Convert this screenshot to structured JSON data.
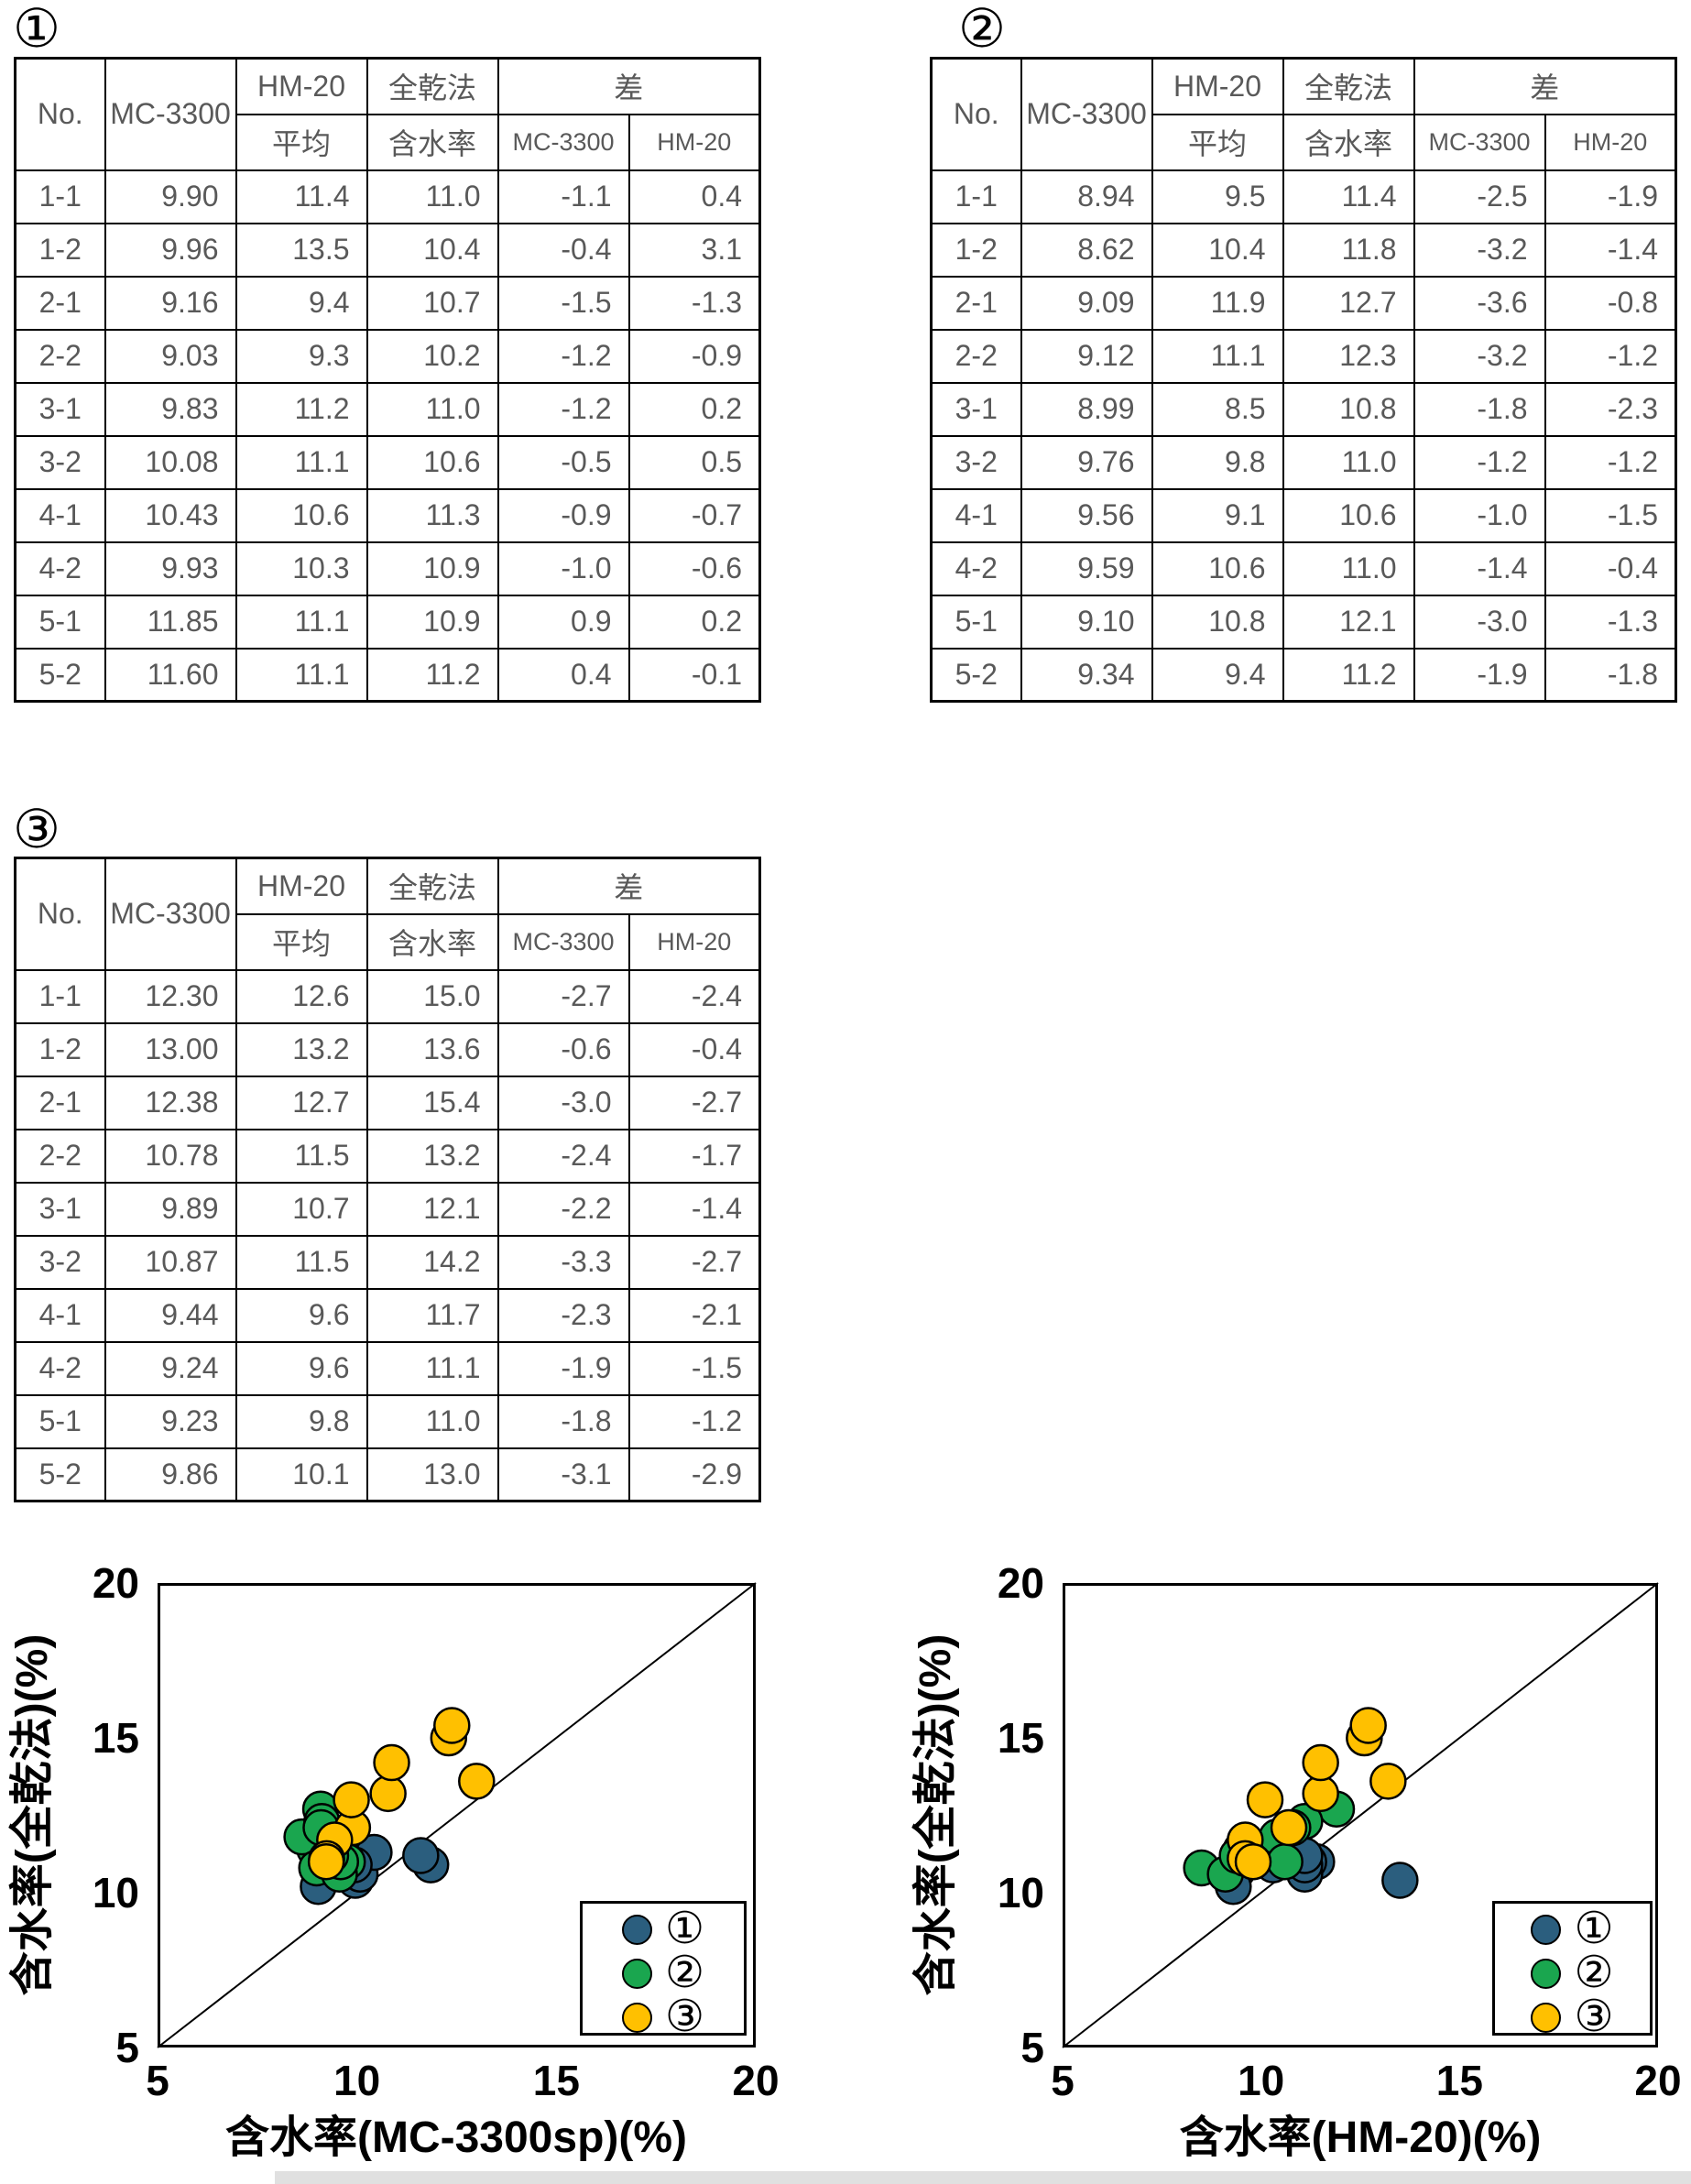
{
  "tables": [
    {
      "label": "①",
      "header": {
        "no": "No.",
        "device_a": "MC-3300",
        "device_b": "HM-20",
        "avg": "平均",
        "oven": "全乾法",
        "moisture": "含水率",
        "diff": "差",
        "diff_a": "MC-3300",
        "diff_b": "HM-20"
      },
      "rows": [
        [
          "1-1",
          "9.90",
          "11.4",
          "11.0",
          "-1.1",
          "0.4"
        ],
        [
          "1-2",
          "9.96",
          "13.5",
          "10.4",
          "-0.4",
          "3.1"
        ],
        [
          "2-1",
          "9.16",
          "9.4",
          "10.7",
          "-1.5",
          "-1.3"
        ],
        [
          "2-2",
          "9.03",
          "9.3",
          "10.2",
          "-1.2",
          "-0.9"
        ],
        [
          "3-1",
          "9.83",
          "11.2",
          "11.0",
          "-1.2",
          "0.2"
        ],
        [
          "3-2",
          "10.08",
          "11.1",
          "10.6",
          "-0.5",
          "0.5"
        ],
        [
          "4-1",
          "10.43",
          "10.6",
          "11.3",
          "-0.9",
          "-0.7"
        ],
        [
          "4-2",
          "9.93",
          "10.3",
          "10.9",
          "-1.0",
          "-0.6"
        ],
        [
          "5-1",
          "11.85",
          "11.1",
          "10.9",
          "0.9",
          "0.2"
        ],
        [
          "5-2",
          "11.60",
          "11.1",
          "11.2",
          "0.4",
          "-0.1"
        ]
      ]
    },
    {
      "label": "②",
      "header": {
        "no": "No.",
        "device_a": "MC-3300",
        "device_b": "HM-20",
        "avg": "平均",
        "oven": "全乾法",
        "moisture": "含水率",
        "diff": "差",
        "diff_a": "MC-3300",
        "diff_b": "HM-20"
      },
      "rows": [
        [
          "1-1",
          "8.94",
          "9.5",
          "11.4",
          "-2.5",
          "-1.9"
        ],
        [
          "1-2",
          "8.62",
          "10.4",
          "11.8",
          "-3.2",
          "-1.4"
        ],
        [
          "2-1",
          "9.09",
          "11.9",
          "12.7",
          "-3.6",
          "-0.8"
        ],
        [
          "2-2",
          "9.12",
          "11.1",
          "12.3",
          "-3.2",
          "-1.2"
        ],
        [
          "3-1",
          "8.99",
          "8.5",
          "10.8",
          "-1.8",
          "-2.3"
        ],
        [
          "3-2",
          "9.76",
          "9.8",
          "11.0",
          "-1.2",
          "-1.2"
        ],
        [
          "4-1",
          "9.56",
          "9.1",
          "10.6",
          "-1.0",
          "-1.5"
        ],
        [
          "4-2",
          "9.59",
          "10.6",
          "11.0",
          "-1.4",
          "-0.4"
        ],
        [
          "5-1",
          "9.10",
          "10.8",
          "12.1",
          "-3.0",
          "-1.3"
        ],
        [
          "5-2",
          "9.34",
          "9.4",
          "11.2",
          "-1.9",
          "-1.8"
        ]
      ]
    },
    {
      "label": "③",
      "header": {
        "no": "No.",
        "device_a": "MC-3300",
        "device_b": "HM-20",
        "avg": "平均",
        "oven": "全乾法",
        "moisture": "含水率",
        "diff": "差",
        "diff_a": "MC-3300",
        "diff_b": "HM-20"
      },
      "rows": [
        [
          "1-1",
          "12.30",
          "12.6",
          "15.0",
          "-2.7",
          "-2.4"
        ],
        [
          "1-2",
          "13.00",
          "13.2",
          "13.6",
          "-0.6",
          "-0.4"
        ],
        [
          "2-1",
          "12.38",
          "12.7",
          "15.4",
          "-3.0",
          "-2.7"
        ],
        [
          "2-2",
          "10.78",
          "11.5",
          "13.2",
          "-2.4",
          "-1.7"
        ],
        [
          "3-1",
          "9.89",
          "10.7",
          "12.1",
          "-2.2",
          "-1.4"
        ],
        [
          "3-2",
          "10.87",
          "11.5",
          "14.2",
          "-3.3",
          "-2.7"
        ],
        [
          "4-1",
          "9.44",
          "9.6",
          "11.7",
          "-2.3",
          "-2.1"
        ],
        [
          "4-2",
          "9.24",
          "9.6",
          "11.1",
          "-1.9",
          "-1.5"
        ],
        [
          "5-1",
          "9.23",
          "9.8",
          "11.0",
          "-1.8",
          "-1.2"
        ],
        [
          "5-2",
          "9.86",
          "10.1",
          "13.0",
          "-3.1",
          "-2.9"
        ]
      ]
    }
  ],
  "chart_data": [
    {
      "type": "scatter",
      "title": "",
      "xlabel": "含水率(MC-3300sp)(%)",
      "ylabel": "含水率(全乾法)(%)",
      "xlim": [
        5,
        20
      ],
      "ylim": [
        5,
        20
      ],
      "xticks": [
        5,
        10,
        15,
        20
      ],
      "yticks": [
        5,
        10,
        15,
        20
      ],
      "grid": false,
      "diagonal_line": {
        "from": [
          5,
          5
        ],
        "to": [
          20,
          20
        ]
      },
      "legend_position": "lower-right",
      "series": [
        {
          "name": "①",
          "color": "#2b5e7e",
          "points": [
            [
              9.9,
              11.0
            ],
            [
              9.96,
              10.4
            ],
            [
              9.16,
              10.7
            ],
            [
              9.03,
              10.2
            ],
            [
              9.83,
              11.0
            ],
            [
              10.08,
              10.6
            ],
            [
              10.43,
              11.3
            ],
            [
              9.93,
              10.9
            ],
            [
              11.85,
              10.9
            ],
            [
              11.6,
              11.2
            ]
          ]
        },
        {
          "name": "②",
          "color": "#1aa64f",
          "points": [
            [
              8.94,
              11.4
            ],
            [
              8.62,
              11.8
            ],
            [
              9.09,
              12.7
            ],
            [
              9.12,
              12.3
            ],
            [
              8.99,
              10.8
            ],
            [
              9.76,
              11.0
            ],
            [
              9.56,
              10.6
            ],
            [
              9.59,
              11.0
            ],
            [
              9.1,
              12.1
            ],
            [
              9.34,
              11.2
            ]
          ]
        },
        {
          "name": "③",
          "color": "#ffc000",
          "points": [
            [
              12.3,
              15.0
            ],
            [
              13.0,
              13.6
            ],
            [
              12.38,
              15.4
            ],
            [
              10.78,
              13.2
            ],
            [
              9.89,
              12.1
            ],
            [
              10.87,
              14.2
            ],
            [
              9.44,
              11.7
            ],
            [
              9.24,
              11.1
            ],
            [
              9.23,
              11.0
            ],
            [
              9.86,
              13.0
            ]
          ]
        }
      ]
    },
    {
      "type": "scatter",
      "title": "",
      "xlabel": "含水率(HM-20)(%)",
      "ylabel": "含水率(全乾法)(%)",
      "xlim": [
        5,
        20
      ],
      "ylim": [
        5,
        20
      ],
      "xticks": [
        5,
        10,
        15,
        20
      ],
      "yticks": [
        5,
        10,
        15,
        20
      ],
      "grid": false,
      "diagonal_line": {
        "from": [
          5,
          5
        ],
        "to": [
          20,
          20
        ]
      },
      "legend_position": "lower-right",
      "series": [
        {
          "name": "①",
          "color": "#2b5e7e",
          "points": [
            [
              11.4,
              11.0
            ],
            [
              13.5,
              10.4
            ],
            [
              9.4,
              10.7
            ],
            [
              9.3,
              10.2
            ],
            [
              11.2,
              11.0
            ],
            [
              11.1,
              10.6
            ],
            [
              10.6,
              11.3
            ],
            [
              10.3,
              10.9
            ],
            [
              11.1,
              10.9
            ],
            [
              11.1,
              11.2
            ]
          ]
        },
        {
          "name": "②",
          "color": "#1aa64f",
          "points": [
            [
              9.5,
              11.4
            ],
            [
              10.4,
              11.8
            ],
            [
              11.9,
              12.7
            ],
            [
              11.1,
              12.3
            ],
            [
              8.5,
              10.8
            ],
            [
              9.8,
              11.0
            ],
            [
              9.1,
              10.6
            ],
            [
              10.6,
              11.0
            ],
            [
              10.8,
              12.1
            ],
            [
              9.4,
              11.2
            ]
          ]
        },
        {
          "name": "③",
          "color": "#ffc000",
          "points": [
            [
              12.6,
              15.0
            ],
            [
              13.2,
              13.6
            ],
            [
              12.7,
              15.4
            ],
            [
              11.5,
              13.2
            ],
            [
              10.7,
              12.1
            ],
            [
              11.5,
              14.2
            ],
            [
              9.6,
              11.7
            ],
            [
              9.6,
              11.1
            ],
            [
              9.8,
              11.0
            ],
            [
              10.1,
              13.0
            ]
          ]
        }
      ]
    }
  ]
}
